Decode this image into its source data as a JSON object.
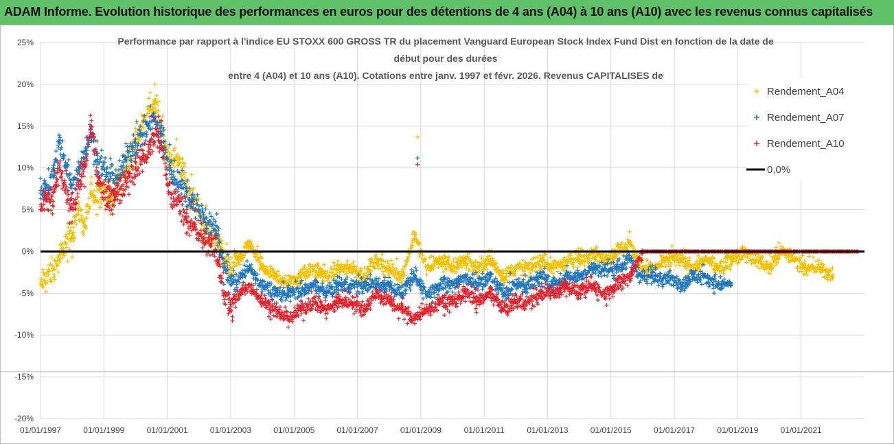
{
  "banner": {
    "title": "ADAM Informe. Evolution historique des performances en euros pour des détentions de 4 ans (A04) à 10 ans (A10) avec les revenus connus capitalisés"
  },
  "chart_data": {
    "type": "scatter",
    "title_lines": [
      "Performance par rapport à l'indice EU STOXX 600 GROSS TR  du placement Vanguard European Stock Index Fund Dist en fonction de la date de",
      "début pour des durées",
      "entre 4 (A04) et 10 ans (A10).  Cotations entre janv. 1997 et févr. 2026. Revenus CAPITALISES de"
    ],
    "x_range": [
      "1997-01-01",
      "2022-12-31"
    ],
    "x_ticks": [
      "01/01/1997",
      "01/01/1999",
      "01/01/2001",
      "01/01/2003",
      "01/01/2005",
      "01/01/2007",
      "01/01/2009",
      "01/01/2011",
      "01/01/2013",
      "01/01/2015",
      "01/01/2017",
      "01/01/2019",
      "01/01/2021"
    ],
    "ylim": [
      -0.2,
      0.25
    ],
    "y_ticks": [
      0.25,
      0.2,
      0.15,
      0.1,
      0.05,
      0.0,
      -0.05,
      -0.1,
      -0.15,
      -0.2
    ],
    "y_tick_labels": [
      "25%",
      "20%",
      "15%",
      "10%",
      "5%",
      "0%",
      "-5%",
      "-10%",
      "-15%",
      "-20%"
    ],
    "reference_line": {
      "name": "0,0%",
      "value": 0.0,
      "color": "#000000"
    },
    "legend_position": "right",
    "series": [
      {
        "name": "Rendement_A04",
        "color": "#f5c000",
        "marker": "+",
        "points": [
          [
            1997.0,
            -0.04
          ],
          [
            1997.2,
            -0.03
          ],
          [
            1997.4,
            -0.02
          ],
          [
            1997.6,
            -0.01
          ],
          [
            1997.8,
            0.01
          ],
          [
            1998.0,
            0.02
          ],
          [
            1998.2,
            0.05
          ],
          [
            1998.4,
            0.03
          ],
          [
            1998.6,
            0.07
          ],
          [
            1998.8,
            0.06
          ],
          [
            1999.0,
            0.08
          ],
          [
            1999.2,
            0.06
          ],
          [
            1999.4,
            0.08
          ],
          [
            1999.6,
            0.09
          ],
          [
            1999.8,
            0.11
          ],
          [
            2000.0,
            0.13
          ],
          [
            2000.2,
            0.15
          ],
          [
            2000.4,
            0.17
          ],
          [
            2000.6,
            0.18
          ],
          [
            2000.8,
            0.15
          ],
          [
            2001.0,
            0.12
          ],
          [
            2001.2,
            0.11
          ],
          [
            2001.4,
            0.11
          ],
          [
            2001.6,
            0.08
          ],
          [
            2001.8,
            0.06
          ],
          [
            2002.0,
            0.05
          ],
          [
            2002.2,
            0.03
          ],
          [
            2002.4,
            0.02
          ],
          [
            2002.6,
            0.01
          ],
          [
            2002.8,
            -0.01
          ],
          [
            2003.0,
            -0.02
          ],
          [
            2003.3,
            -0.01
          ],
          [
            2003.6,
            0.01
          ],
          [
            2004.0,
            -0.02
          ],
          [
            2004.4,
            -0.03
          ],
          [
            2004.8,
            -0.04
          ],
          [
            2005.2,
            -0.03
          ],
          [
            2005.6,
            -0.02
          ],
          [
            2006.0,
            -0.03
          ],
          [
            2006.4,
            -0.02
          ],
          [
            2006.8,
            -0.02
          ],
          [
            2007.2,
            -0.03
          ],
          [
            2007.6,
            -0.01
          ],
          [
            2008.0,
            -0.02
          ],
          [
            2008.4,
            -0.03
          ],
          [
            2008.8,
            0.02
          ],
          [
            2008.9,
            0.137
          ],
          [
            2009.2,
            -0.02
          ],
          [
            2009.6,
            -0.01
          ],
          [
            2010.0,
            -0.02
          ],
          [
            2010.4,
            -0.01
          ],
          [
            2010.8,
            -0.02
          ],
          [
            2011.2,
            -0.01
          ],
          [
            2011.6,
            -0.03
          ],
          [
            2012.0,
            -0.02
          ],
          [
            2012.4,
            -0.02
          ],
          [
            2012.8,
            -0.01
          ],
          [
            2013.2,
            -0.02
          ],
          [
            2013.6,
            -0.01
          ],
          [
            2014.0,
            -0.01
          ],
          [
            2014.4,
            0.0
          ],
          [
            2014.8,
            -0.01
          ],
          [
            2015.2,
            0.0
          ],
          [
            2015.6,
            0.01
          ],
          [
            2016.0,
            -0.02
          ],
          [
            2016.4,
            -0.02
          ],
          [
            2016.8,
            -0.01
          ],
          [
            2017.2,
            -0.01
          ],
          [
            2017.6,
            -0.02
          ],
          [
            2018.0,
            -0.01
          ],
          [
            2018.4,
            -0.02
          ],
          [
            2018.8,
            -0.01
          ],
          [
            2019.2,
            0.0
          ],
          [
            2019.6,
            -0.01
          ],
          [
            2020.0,
            -0.02
          ],
          [
            2020.4,
            0.0
          ],
          [
            2020.8,
            -0.01
          ],
          [
            2021.2,
            -0.02
          ],
          [
            2021.6,
            -0.02
          ],
          [
            2022.0,
            -0.03
          ]
        ]
      },
      {
        "name": "Rendement_A07",
        "color": "#1f77c0",
        "marker": "+",
        "points": [
          [
            1997.0,
            0.07
          ],
          [
            1997.2,
            0.08
          ],
          [
            1997.4,
            0.09
          ],
          [
            1997.6,
            0.13
          ],
          [
            1997.8,
            0.1
          ],
          [
            1998.0,
            0.08
          ],
          [
            1998.2,
            0.1
          ],
          [
            1998.4,
            0.12
          ],
          [
            1998.6,
            0.14
          ],
          [
            1998.8,
            0.11
          ],
          [
            1999.0,
            0.1
          ],
          [
            1999.2,
            0.09
          ],
          [
            1999.4,
            0.09
          ],
          [
            1999.6,
            0.1
          ],
          [
            1999.8,
            0.12
          ],
          [
            2000.0,
            0.13
          ],
          [
            2000.2,
            0.14
          ],
          [
            2000.4,
            0.15
          ],
          [
            2000.6,
            0.16
          ],
          [
            2000.8,
            0.14
          ],
          [
            2001.0,
            0.11
          ],
          [
            2001.2,
            0.09
          ],
          [
            2001.4,
            0.08
          ],
          [
            2001.6,
            0.07
          ],
          [
            2001.8,
            0.06
          ],
          [
            2002.0,
            0.05
          ],
          [
            2002.2,
            0.04
          ],
          [
            2002.4,
            0.03
          ],
          [
            2002.6,
            0.02
          ],
          [
            2002.8,
            -0.02
          ],
          [
            2003.0,
            -0.04
          ],
          [
            2003.3,
            -0.03
          ],
          [
            2003.6,
            -0.02
          ],
          [
            2004.0,
            -0.04
          ],
          [
            2004.4,
            -0.05
          ],
          [
            2004.8,
            -0.05
          ],
          [
            2005.2,
            -0.05
          ],
          [
            2005.6,
            -0.04
          ],
          [
            2006.0,
            -0.05
          ],
          [
            2006.4,
            -0.04
          ],
          [
            2006.8,
            -0.04
          ],
          [
            2007.2,
            -0.04
          ],
          [
            2007.6,
            -0.04
          ],
          [
            2008.0,
            -0.04
          ],
          [
            2008.4,
            -0.05
          ],
          [
            2008.8,
            -0.03
          ],
          [
            2008.9,
            0.112
          ],
          [
            2009.2,
            -0.05
          ],
          [
            2009.6,
            -0.04
          ],
          [
            2010.0,
            -0.04
          ],
          [
            2010.4,
            -0.03
          ],
          [
            2010.8,
            -0.04
          ],
          [
            2011.2,
            -0.03
          ],
          [
            2011.6,
            -0.05
          ],
          [
            2012.0,
            -0.04
          ],
          [
            2012.4,
            -0.04
          ],
          [
            2012.8,
            -0.03
          ],
          [
            2013.2,
            -0.04
          ],
          [
            2013.6,
            -0.03
          ],
          [
            2014.0,
            -0.03
          ],
          [
            2014.4,
            -0.02
          ],
          [
            2014.8,
            -0.02
          ],
          [
            2015.2,
            -0.02
          ],
          [
            2015.6,
            -0.01
          ],
          [
            2016.0,
            -0.03
          ],
          [
            2016.4,
            -0.03
          ],
          [
            2016.8,
            -0.03
          ],
          [
            2017.2,
            -0.04
          ],
          [
            2017.6,
            -0.03
          ],
          [
            2018.0,
            -0.03
          ],
          [
            2018.4,
            -0.04
          ],
          [
            2018.8,
            -0.04
          ]
        ]
      },
      {
        "name": "Rendement_A10",
        "color": "#e8202a",
        "marker": "+",
        "points": [
          [
            1997.0,
            0.05
          ],
          [
            1997.2,
            0.06
          ],
          [
            1997.4,
            0.06
          ],
          [
            1997.6,
            0.1
          ],
          [
            1997.8,
            0.07
          ],
          [
            1998.0,
            0.05
          ],
          [
            1998.2,
            0.08
          ],
          [
            1998.4,
            0.1
          ],
          [
            1998.6,
            0.15
          ],
          [
            1998.8,
            0.09
          ],
          [
            1999.0,
            0.07
          ],
          [
            1999.2,
            0.06
          ],
          [
            1999.4,
            0.07
          ],
          [
            1999.6,
            0.08
          ],
          [
            1999.8,
            0.09
          ],
          [
            2000.0,
            0.1
          ],
          [
            2000.2,
            0.11
          ],
          [
            2000.4,
            0.12
          ],
          [
            2000.6,
            0.14
          ],
          [
            2000.8,
            0.13
          ],
          [
            2001.0,
            0.08
          ],
          [
            2001.2,
            0.06
          ],
          [
            2001.4,
            0.06
          ],
          [
            2001.6,
            0.04
          ],
          [
            2001.8,
            0.03
          ],
          [
            2002.0,
            0.02
          ],
          [
            2002.2,
            0.01
          ],
          [
            2002.4,
            0.01
          ],
          [
            2002.6,
            -0.01
          ],
          [
            2002.8,
            -0.05
          ],
          [
            2003.0,
            -0.07
          ],
          [
            2003.3,
            -0.05
          ],
          [
            2003.6,
            -0.04
          ],
          [
            2004.0,
            -0.06
          ],
          [
            2004.4,
            -0.07
          ],
          [
            2004.8,
            -0.08
          ],
          [
            2005.2,
            -0.07
          ],
          [
            2005.6,
            -0.06
          ],
          [
            2006.0,
            -0.07
          ],
          [
            2006.4,
            -0.06
          ],
          [
            2006.8,
            -0.06
          ],
          [
            2007.2,
            -0.07
          ],
          [
            2007.6,
            -0.05
          ],
          [
            2008.0,
            -0.06
          ],
          [
            2008.4,
            -0.07
          ],
          [
            2008.8,
            -0.08
          ],
          [
            2008.9,
            0.104
          ],
          [
            2009.2,
            -0.07
          ],
          [
            2009.6,
            -0.06
          ],
          [
            2010.0,
            -0.06
          ],
          [
            2010.4,
            -0.05
          ],
          [
            2010.8,
            -0.06
          ],
          [
            2011.2,
            -0.05
          ],
          [
            2011.6,
            -0.07
          ],
          [
            2012.0,
            -0.06
          ],
          [
            2012.4,
            -0.06
          ],
          [
            2012.8,
            -0.05
          ],
          [
            2013.2,
            -0.05
          ],
          [
            2013.6,
            -0.04
          ],
          [
            2014.0,
            -0.05
          ],
          [
            2014.4,
            -0.04
          ],
          [
            2014.8,
            -0.05
          ],
          [
            2015.2,
            -0.04
          ],
          [
            2015.6,
            -0.03
          ],
          [
            2016.0,
            0.0
          ],
          [
            2016.4,
            0.0
          ],
          [
            2016.8,
            0.0
          ],
          [
            2017.2,
            0.0
          ],
          [
            2017.6,
            0.0
          ],
          [
            2018.0,
            0.0
          ],
          [
            2018.4,
            0.0
          ],
          [
            2018.8,
            0.0
          ],
          [
            2019.2,
            0.0
          ],
          [
            2019.6,
            0.0
          ],
          [
            2020.0,
            0.0
          ],
          [
            2020.4,
            0.0
          ],
          [
            2020.8,
            0.0
          ],
          [
            2021.2,
            0.0
          ],
          [
            2021.6,
            0.0
          ],
          [
            2022.0,
            0.0
          ],
          [
            2022.4,
            0.0
          ],
          [
            2022.8,
            0.0
          ]
        ]
      }
    ]
  }
}
